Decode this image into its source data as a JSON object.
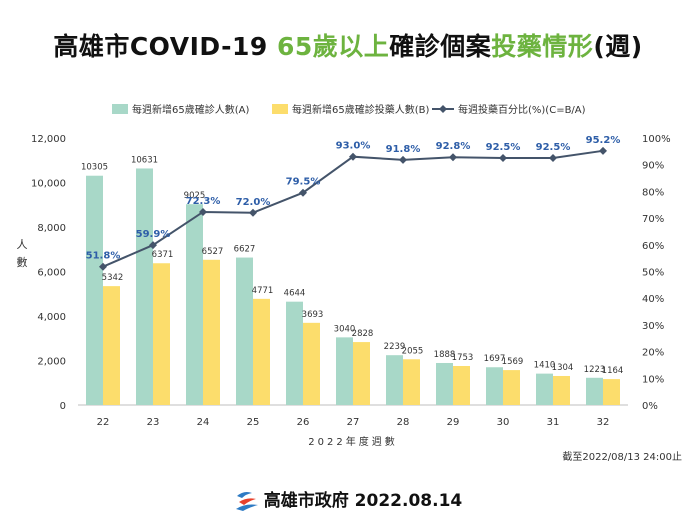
{
  "title": {
    "part1": "高雄市COVID-19 ",
    "part2": "65歲以上",
    "part3": "確診個案",
    "part4": "投藥情形",
    "part5": "(週)"
  },
  "colors": {
    "bar_a": "#a8d8c8",
    "bar_b": "#fcdd6c",
    "line": "#44546a",
    "pct_label": "#2e5ea8",
    "title_green": "#6db33f"
  },
  "chart_data": {
    "type": "bar",
    "categories": [
      "22",
      "23",
      "24",
      "25",
      "26",
      "27",
      "28",
      "29",
      "30",
      "31",
      "32"
    ],
    "series": [
      {
        "name": "每週新增65歲確診人數(A)",
        "type": "bar",
        "values": [
          10305,
          10631,
          9025,
          6627,
          4644,
          3040,
          2239,
          1888,
          1697,
          1410,
          1223
        ]
      },
      {
        "name": "每週新增65歲確診投藥人數(B)",
        "type": "bar",
        "values": [
          5342,
          6371,
          6527,
          4771,
          3693,
          2828,
          2055,
          1753,
          1569,
          1304,
          1164
        ]
      },
      {
        "name": "每週投藥百分比(%)(C=B/A)",
        "type": "line",
        "axis": "right",
        "values": [
          51.8,
          59.9,
          72.3,
          72.0,
          79.5,
          93.0,
          91.8,
          92.8,
          92.5,
          92.5,
          95.2
        ],
        "labels": [
          "51.8%",
          "59.9%",
          "72.3%",
          "72.0%",
          "79.5%",
          "93.0%",
          "91.8%",
          "92.8%",
          "92.5%",
          "92.5%",
          "95.2%"
        ]
      }
    ],
    "xlabel": "2022年度週數",
    "ylabel": "人數",
    "ylim": [
      0,
      12000
    ],
    "y2lim": [
      0,
      100
    ],
    "yticks": [
      "0",
      "2,000",
      "4,000",
      "6,000",
      "8,000",
      "10,000",
      "12,000"
    ],
    "y2ticks": [
      "0%",
      "10%",
      "20%",
      "30%",
      "40%",
      "50%",
      "60%",
      "70%",
      "80%",
      "90%",
      "100%"
    ],
    "legend_position": "top",
    "grid": false
  },
  "note": "截至2022/08/13 24:00止",
  "footer": "高雄市政府 2022.08.14"
}
